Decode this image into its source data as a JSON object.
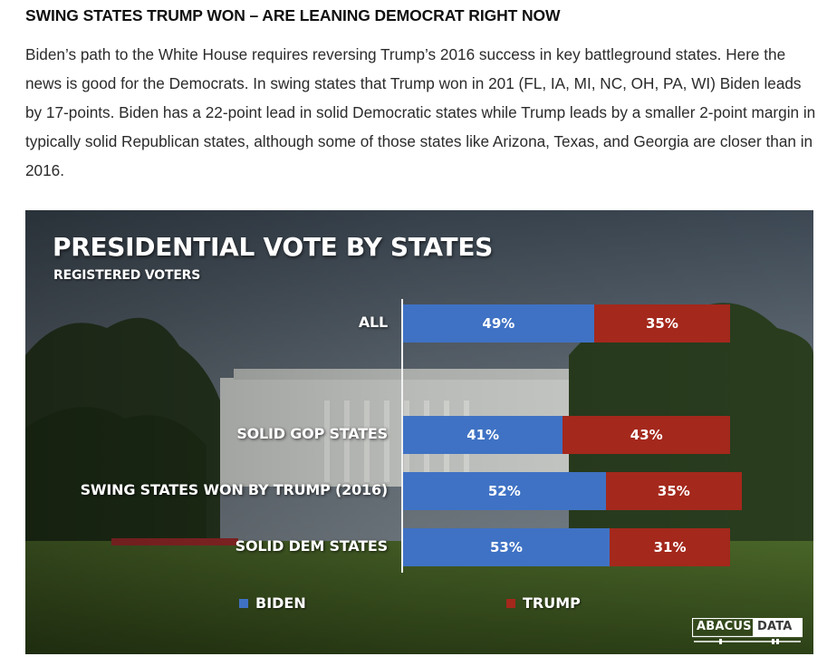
{
  "article": {
    "headline": "SWING STATES TRUMP WON – ARE LEANING DEMOCRAT RIGHT NOW",
    "body": "Biden’s path to the White House requires reversing Trump’s 2016 success in key battleground states. Here the news is good for the Democrats. In swing states that Trump won in 201 (FL, IA, MI, NC, OH, PA, WI) Biden leads by 17-points. Biden has a 22-point lead in solid Democratic states while Trump leads by a smaller 2-point margin in typically solid Republican states, although some of those states like Arizona, Texas, and Georgia are closer than in 2016."
  },
  "chart_data": {
    "type": "bar",
    "orientation": "horizontal",
    "stacked": true,
    "title": "PRESIDENTIAL VOTE BY STATES",
    "subtitle": "REGISTERED VOTERS",
    "categories": [
      "ALL",
      "SOLID GOP STATES",
      "SWING STATES WON BY TRUMP (2016)",
      "SOLID DEM STATES"
    ],
    "series": [
      {
        "name": "BIDEN",
        "values": [
          49,
          41,
          52,
          53
        ],
        "labels": [
          "49%",
          "41%",
          "52%",
          "53%"
        ],
        "color": "#3f72c4"
      },
      {
        "name": "TRUMP",
        "values": [
          35,
          43,
          35,
          31
        ],
        "labels": [
          "35%",
          "43%",
          "35%",
          "31%"
        ],
        "color": "#a4281c"
      }
    ],
    "legend_position": "bottom",
    "grid": false
  },
  "logo": {
    "word1": "ABACUS",
    "word2": "DATA"
  },
  "icons": {
    "background": "white-house-photo",
    "logo": "abacus-data-logo"
  }
}
